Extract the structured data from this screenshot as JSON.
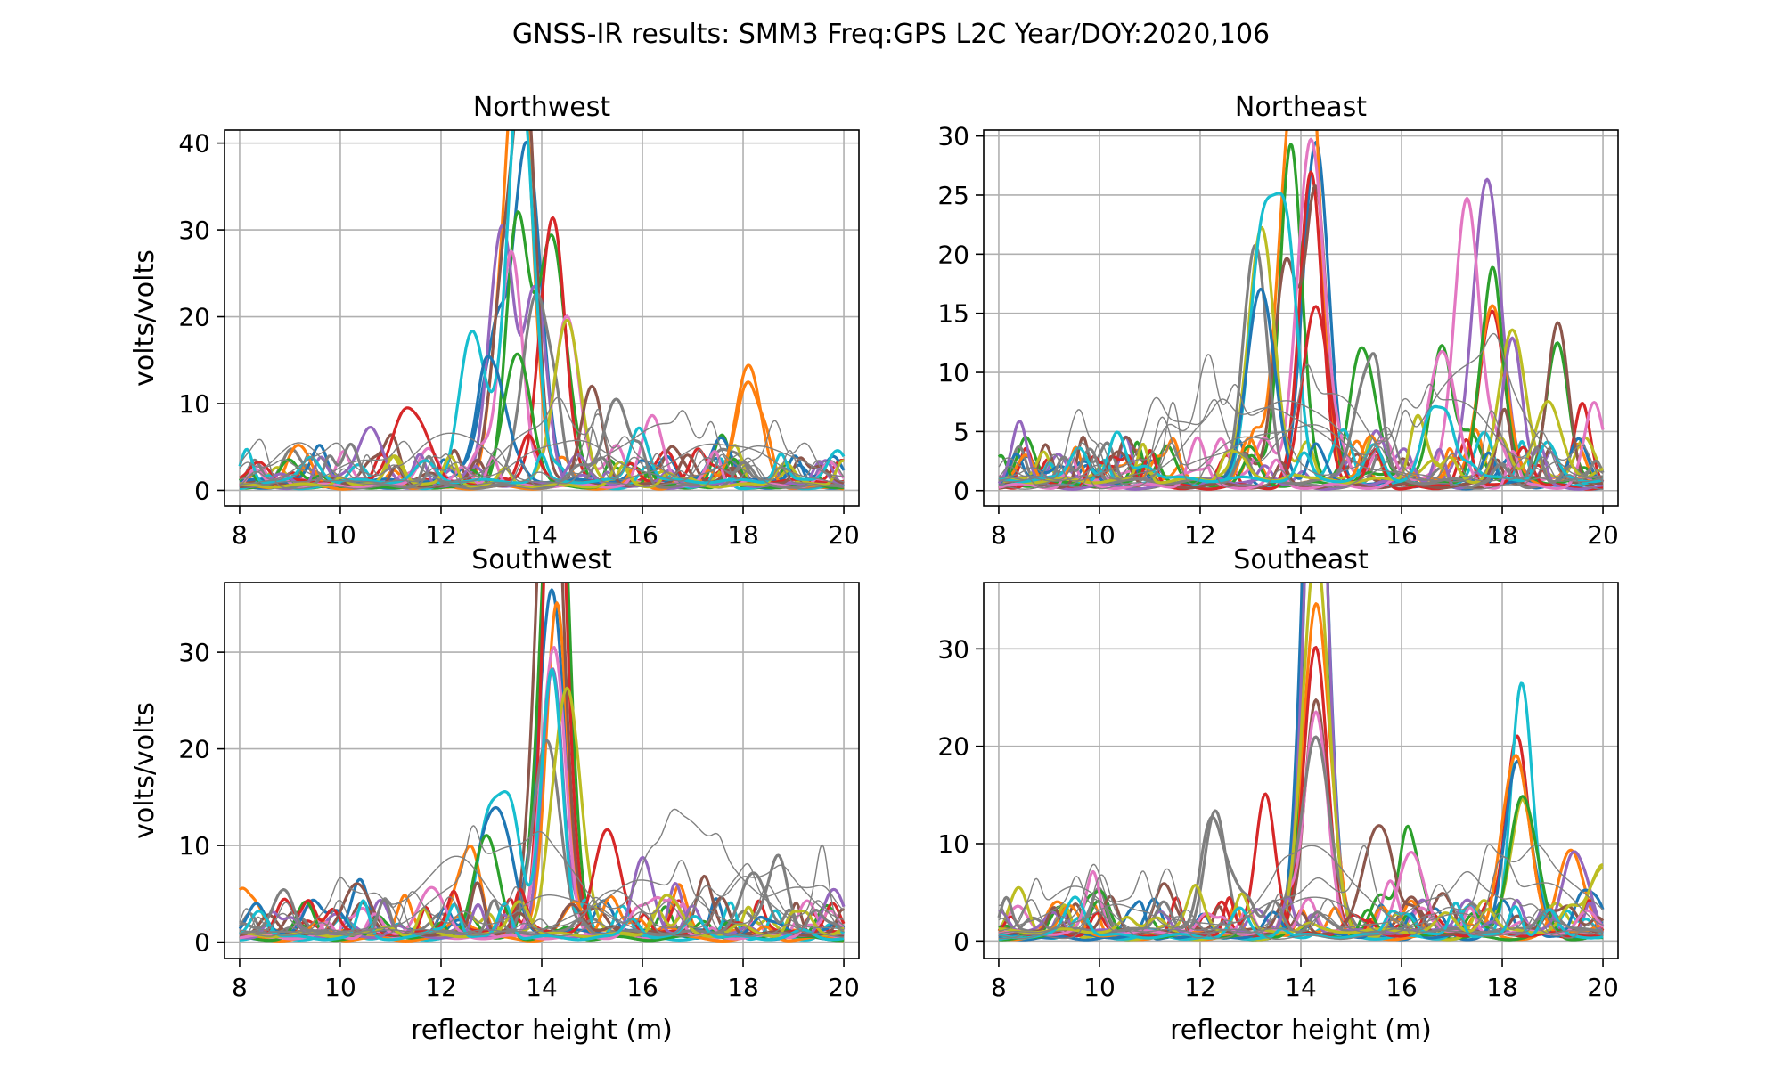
{
  "figure": {
    "suptitle": "GNSS-IR results: SMM3 Freq:GPS L2C Year/DOY:2020,106"
  },
  "palette": [
    "#1f77b4",
    "#ff7f0e",
    "#2ca02c",
    "#d62728",
    "#9467bd",
    "#8c564b",
    "#e377c2",
    "#7f7f7f",
    "#bcbd22",
    "#17becf"
  ],
  "reject_color": "#808080",
  "chart_data": [
    {
      "type": "line",
      "title": "Northwest",
      "xlabel": "",
      "ylabel": "volts/volts",
      "xlim": [
        7.7,
        20.3
      ],
      "ylim": [
        -1.8,
        41.5
      ],
      "xticks": [
        8,
        10,
        12,
        14,
        16,
        18,
        20
      ],
      "xtick_labels": [
        "8",
        "10",
        "12",
        "14",
        "16",
        "18",
        "20"
      ],
      "yticks": [
        0,
        10,
        20,
        30,
        40
      ],
      "ytick_labels": [
        "0",
        "10",
        "20",
        "30",
        "40"
      ],
      "grid": true,
      "peaks": [
        {
          "x": 13.7,
          "y": 39.5,
          "series": 5
        },
        {
          "x": 13.6,
          "y": 33.3,
          "series": 9
        },
        {
          "x": 13.5,
          "y": 29.5,
          "series": 0
        },
        {
          "x": 14.2,
          "y": 28.8,
          "series": 2
        },
        {
          "x": 13.2,
          "y": 28.5,
          "series": 8
        },
        {
          "x": 13.3,
          "y": 25.5,
          "series": 3
        },
        {
          "x": 13.4,
          "y": 24.5,
          "series": 1
        },
        {
          "x": 13.9,
          "y": 21.5,
          "series": 4
        },
        {
          "x": 14.5,
          "y": 19.0,
          "series": 6
        },
        {
          "x": 12.6,
          "y": 17.0,
          "series": 3
        },
        {
          "x": 13.0,
          "y": 13.5,
          "series": 0
        },
        {
          "x": 18.1,
          "y": 12.0,
          "series": 1
        },
        {
          "x": 13.5,
          "y": 15.0,
          "series": 9
        },
        {
          "x": 11.3,
          "y": 8.2,
          "series": 0
        },
        {
          "x": 10.6,
          "y": 6.8,
          "series": 4
        },
        {
          "x": 15.0,
          "y": 10.5,
          "series": 7
        },
        {
          "x": 16.2,
          "y": 8.0,
          "series": 4
        },
        {
          "x": 15.5,
          "y": 9.0,
          "series": 3
        }
      ]
    },
    {
      "type": "line",
      "title": "Northeast",
      "xlabel": "",
      "ylabel": "",
      "xlim": [
        7.7,
        20.3
      ],
      "ylim": [
        -1.3,
        30.5
      ],
      "xticks": [
        8,
        10,
        12,
        14,
        16,
        18,
        20
      ],
      "xtick_labels": [
        "8",
        "10",
        "12",
        "14",
        "16",
        "18",
        "20"
      ],
      "yticks": [
        0,
        5,
        10,
        15,
        20,
        25,
        30
      ],
      "ytick_labels": [
        "0",
        "5",
        "10",
        "15",
        "20",
        "25",
        "30"
      ],
      "grid": true,
      "peaks": [
        {
          "x": 14.3,
          "y": 29.0,
          "series": 0
        },
        {
          "x": 14.2,
          "y": 28.5,
          "series": 6
        },
        {
          "x": 13.8,
          "y": 28.0,
          "series": 1
        },
        {
          "x": 14.2,
          "y": 26.8,
          "series": 8
        },
        {
          "x": 17.7,
          "y": 25.7,
          "series": 4
        },
        {
          "x": 14.3,
          "y": 24.5,
          "series": 2
        },
        {
          "x": 17.3,
          "y": 23.9,
          "series": 2
        },
        {
          "x": 13.1,
          "y": 20.4,
          "series": 3
        },
        {
          "x": 13.2,
          "y": 18.0,
          "series": 9
        },
        {
          "x": 13.7,
          "y": 18.8,
          "series": 5
        },
        {
          "x": 13.2,
          "y": 16.3,
          "series": 7
        },
        {
          "x": 17.8,
          "y": 15.0,
          "series": 3
        },
        {
          "x": 17.8,
          "y": 14.0,
          "series": 7
        },
        {
          "x": 14.3,
          "y": 15.2,
          "series": 8
        },
        {
          "x": 18.2,
          "y": 12.8,
          "series": 8
        },
        {
          "x": 19.1,
          "y": 11.6,
          "series": 2
        },
        {
          "x": 16.8,
          "y": 11.5,
          "series": 2
        },
        {
          "x": 15.3,
          "y": 9.0,
          "series": 2
        },
        {
          "x": 18.9,
          "y": 6.8,
          "series": 4
        },
        {
          "x": 16.6,
          "y": 5.5,
          "series": 3
        }
      ]
    },
    {
      "type": "line",
      "title": "Southwest",
      "xlabel": "reflector height (m)",
      "ylabel": "volts/volts",
      "xlim": [
        7.7,
        20.3
      ],
      "ylim": [
        -1.7,
        37.2
      ],
      "xticks": [
        8,
        10,
        12,
        14,
        16,
        18,
        20
      ],
      "xtick_labels": [
        "8",
        "10",
        "12",
        "14",
        "16",
        "18",
        "20"
      ],
      "yticks": [
        0,
        10,
        20,
        30
      ],
      "ytick_labels": [
        "0",
        "10",
        "20",
        "30"
      ],
      "grid": true,
      "peaks": [
        {
          "x": 14.2,
          "y": 35.8,
          "series": 5
        },
        {
          "x": 14.3,
          "y": 33.5,
          "series": 3
        },
        {
          "x": 14.3,
          "y": 30.0,
          "series": 0
        },
        {
          "x": 14.2,
          "y": 28.0,
          "series": 9
        },
        {
          "x": 14.2,
          "y": 27.0,
          "series": 2
        },
        {
          "x": 14.1,
          "y": 25.5,
          "series": 8
        },
        {
          "x": 14.2,
          "y": 26.0,
          "series": 6
        },
        {
          "x": 14.1,
          "y": 19.8,
          "series": 2
        },
        {
          "x": 14.5,
          "y": 25.0,
          "series": 7
        },
        {
          "x": 13.3,
          "y": 11.7,
          "series": 3
        },
        {
          "x": 13.1,
          "y": 12.2,
          "series": 3
        },
        {
          "x": 12.6,
          "y": 9.5,
          "series": 0
        },
        {
          "x": 12.9,
          "y": 10.5,
          "series": 9
        },
        {
          "x": 15.3,
          "y": 10.5,
          "series": 7
        },
        {
          "x": 16.0,
          "y": 8.2,
          "series": 2
        },
        {
          "x": 10.4,
          "y": 4.5,
          "series": 0
        },
        {
          "x": 11.8,
          "y": 5.2,
          "series": 3
        },
        {
          "x": 18.2,
          "y": 6.0,
          "series": 7
        }
      ]
    },
    {
      "type": "line",
      "title": "Southeast",
      "xlabel": "reflector height (m)",
      "ylabel": "",
      "xlim": [
        7.7,
        20.3
      ],
      "ylim": [
        -1.8,
        36.8
      ],
      "xticks": [
        8,
        10,
        12,
        14,
        16,
        18,
        20
      ],
      "xtick_labels": [
        "8",
        "10",
        "12",
        "14",
        "16",
        "18",
        "20"
      ],
      "yticks": [
        0,
        10,
        20,
        30
      ],
      "ytick_labels": [
        "0",
        "10",
        "20",
        "30"
      ],
      "grid": true,
      "peaks": [
        {
          "x": 14.3,
          "y": 35.2,
          "series": 2
        },
        {
          "x": 14.3,
          "y": 34.0,
          "series": 7
        },
        {
          "x": 14.3,
          "y": 32.0,
          "series": 4
        },
        {
          "x": 14.3,
          "y": 29.0,
          "series": 5
        },
        {
          "x": 14.3,
          "y": 26.5,
          "series": 6
        },
        {
          "x": 14.3,
          "y": 23.5,
          "series": 3
        },
        {
          "x": 14.3,
          "y": 22.5,
          "series": 0
        },
        {
          "x": 14.3,
          "y": 20.2,
          "series": 8
        },
        {
          "x": 14.3,
          "y": 19.8,
          "series": 1
        },
        {
          "x": 18.4,
          "y": 21.3,
          "series": 0
        },
        {
          "x": 18.3,
          "y": 17.8,
          "series": 3
        },
        {
          "x": 18.3,
          "y": 15.7,
          "series": 1
        },
        {
          "x": 18.4,
          "y": 14.3,
          "series": 8
        },
        {
          "x": 13.3,
          "y": 13.2,
          "series": 7
        },
        {
          "x": 19.4,
          "y": 8.0,
          "series": 1
        },
        {
          "x": 15.5,
          "y": 10.5,
          "series": 4
        },
        {
          "x": 16.2,
          "y": 8.2,
          "series": 2
        },
        {
          "x": 12.3,
          "y": 9.8,
          "series": 7
        },
        {
          "x": 20.0,
          "y": 7.0,
          "series": 8
        }
      ]
    }
  ]
}
